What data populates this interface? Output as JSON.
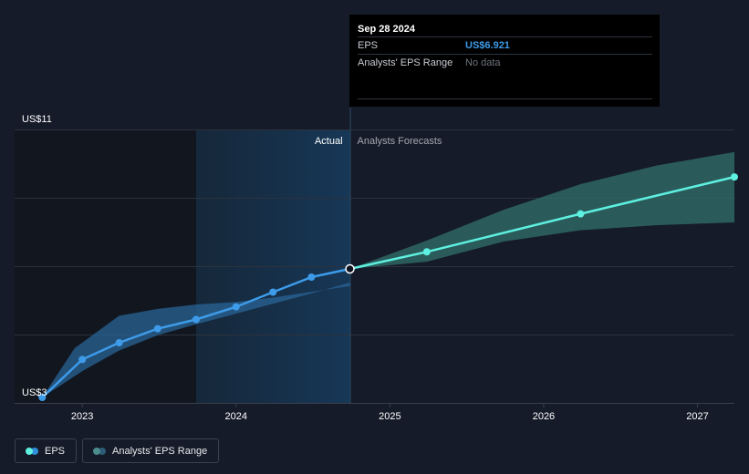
{
  "tooltip": {
    "date": "Sep 28 2024",
    "eps_label": "EPS",
    "eps_value": "US$6.921",
    "range_label": "Analysts' EPS Range",
    "range_value": "No data"
  },
  "legend": [
    {
      "label": "EPS",
      "colors": [
        "#5ef0e0",
        "#2f8fd8"
      ]
    },
    {
      "label": "Analysts' EPS Range",
      "colors": [
        "#4a8d8a",
        "#2c5c78"
      ]
    }
  ],
  "chart_data": {
    "type": "line",
    "ylim": [
      3,
      11
    ],
    "y_tick_labels": [
      {
        "value": 11,
        "label": "US$11"
      },
      {
        "value": 3,
        "label": "US$3"
      }
    ],
    "x_ticks": [
      2023,
      2024,
      2025,
      2026,
      2027
    ],
    "xlim": [
      2022.56,
      2027.24
    ],
    "gridlines": [
      11,
      9,
      7,
      5,
      3
    ],
    "region_labels": {
      "actual": "Actual",
      "forecast": "Analysts Forecasts"
    },
    "actual_shading_start": 2023.74,
    "divider_x": 2024.74,
    "colors": {
      "actual_line": "#3d9be9",
      "forecast_line": "#5ef0e0",
      "actual_band": "#2a6496",
      "forecast_band": "#2f6b66",
      "grid": "#2c323c"
    },
    "series": [
      {
        "name": "EPS",
        "segment": "actual",
        "points": [
          [
            2022.74,
            3.16
          ],
          [
            2023.0,
            4.27
          ],
          [
            2023.24,
            4.76
          ],
          [
            2023.49,
            5.17
          ],
          [
            2023.74,
            5.44
          ],
          [
            2024.0,
            5.81
          ],
          [
            2024.24,
            6.24
          ],
          [
            2024.49,
            6.68
          ],
          [
            2024.74,
            6.92
          ]
        ]
      },
      {
        "name": "EPS",
        "segment": "forecast",
        "points": [
          [
            2024.74,
            6.92
          ],
          [
            2025.24,
            7.42
          ],
          [
            2026.24,
            8.53
          ],
          [
            2027.24,
            9.61
          ]
        ]
      }
    ],
    "actual_band": {
      "upper": [
        [
          2022.74,
          3.16
        ],
        [
          2022.95,
          4.6
        ],
        [
          2023.24,
          5.55
        ],
        [
          2023.49,
          5.75
        ],
        [
          2023.74,
          5.88
        ],
        [
          2024.0,
          5.95
        ],
        [
          2024.24,
          6.08
        ],
        [
          2024.49,
          6.25
        ],
        [
          2024.74,
          6.42
        ]
      ],
      "lower": [
        [
          2022.74,
          3.16
        ],
        [
          2023.0,
          3.93
        ],
        [
          2023.24,
          4.53
        ],
        [
          2023.49,
          4.98
        ],
        [
          2023.74,
          5.3
        ],
        [
          2024.0,
          5.61
        ],
        [
          2024.24,
          5.9
        ],
        [
          2024.49,
          6.2
        ],
        [
          2024.74,
          6.52
        ]
      ]
    },
    "forecast_band": {
      "upper": [
        [
          2024.74,
          6.92
        ],
        [
          2025.24,
          7.75
        ],
        [
          2025.74,
          8.65
        ],
        [
          2026.24,
          9.4
        ],
        [
          2026.74,
          9.95
        ],
        [
          2027.24,
          10.34
        ]
      ],
      "lower": [
        [
          2024.74,
          6.92
        ],
        [
          2025.24,
          7.13
        ],
        [
          2025.74,
          7.72
        ],
        [
          2026.24,
          8.05
        ],
        [
          2026.74,
          8.2
        ],
        [
          2027.24,
          8.28
        ]
      ]
    }
  }
}
